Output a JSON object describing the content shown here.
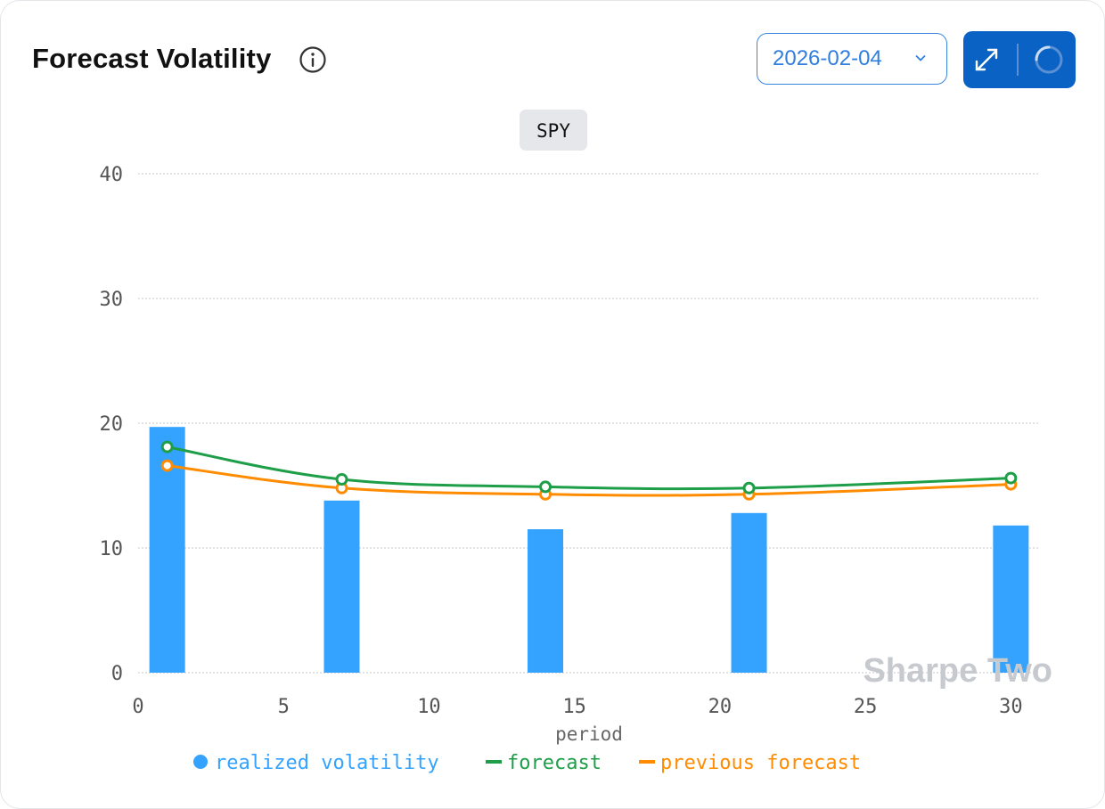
{
  "header": {
    "title": "Forecast Volatility",
    "date_value": "2026-02-04"
  },
  "colors": {
    "realized": "#33a3ff",
    "forecast": "#1e9e48",
    "previous": "#ff8c00",
    "accent": "#0a63c4"
  },
  "watermark": "Sharpe Two",
  "chart_data": {
    "type": "bar",
    "title": "SPY",
    "xlabel": "period",
    "ylabel": "",
    "xlim": [
      0,
      31
    ],
    "ylim": [
      0,
      40
    ],
    "xticks": [
      0,
      5,
      10,
      15,
      20,
      25,
      30
    ],
    "yticks": [
      0,
      10,
      20,
      30,
      40
    ],
    "grid": true,
    "legend_position": "bottom",
    "series": [
      {
        "name": "realized volatility",
        "kind": "bar",
        "x": [
          1,
          7,
          14,
          21,
          30
        ],
        "values": [
          19.7,
          13.8,
          11.5,
          12.8,
          11.8
        ]
      },
      {
        "name": "forecast",
        "kind": "line",
        "x": [
          1,
          7,
          14,
          21,
          30
        ],
        "values": [
          18.1,
          15.5,
          14.9,
          14.8,
          15.6
        ]
      },
      {
        "name": "previous forecast",
        "kind": "line",
        "x": [
          1,
          7,
          14,
          21,
          30
        ],
        "values": [
          16.6,
          14.8,
          14.3,
          14.3,
          15.1
        ]
      }
    ]
  }
}
